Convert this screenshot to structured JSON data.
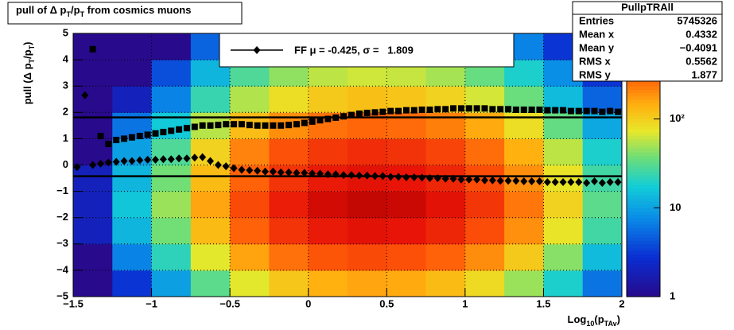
{
  "chart_data": {
    "type": "heatmap",
    "title": [
      {
        "text": "pull of Δ p"
      },
      {
        "text": "T",
        "sub": true
      },
      {
        "text": "/p"
      },
      {
        "text": "T",
        "sub": true
      },
      {
        "text": " from cosmics muons"
      }
    ],
    "ylabel": [
      {
        "text": "pull (Δ p"
      },
      {
        "text": "T",
        "sub": true
      },
      {
        "text": "/p"
      },
      {
        "text": "T",
        "sub": true
      },
      {
        "text": ")"
      }
    ],
    "xlabel": [
      {
        "text": "Log"
      },
      {
        "text": "10",
        "sub": true
      },
      {
        "text": "(p"
      },
      {
        "text": "TAv",
        "sub": true
      },
      {
        "text": ")"
      }
    ],
    "legend": {
      "text": "FF μ = -0.425, σ =   1.809",
      "color": "#000000"
    },
    "stats": {
      "title": "PullpTRAll",
      "rows": [
        [
          "Entries",
          "5745326"
        ],
        [
          "Mean x",
          "0.4332"
        ],
        [
          "Mean y",
          "−0.4091"
        ],
        [
          "RMS x",
          "0.5562"
        ],
        [
          "RMS y",
          "1.877"
        ]
      ]
    },
    "xlim": [
      -1.5,
      2
    ],
    "ylim": [
      -5,
      5
    ],
    "xticks": [
      {
        "value": -1.5,
        "label": "−1.5"
      },
      {
        "value": -1,
        "label": "−1"
      },
      {
        "value": -0.5,
        "label": "−0.5"
      },
      0,
      0.5,
      1,
      1.5,
      2
    ],
    "yticks": [
      {
        "value": -5,
        "label": "−5"
      },
      {
        "value": -4,
        "label": "−4"
      },
      {
        "value": -3,
        "label": "−3"
      },
      {
        "value": -2,
        "label": "−2"
      },
      {
        "value": -1,
        "label": "−1"
      },
      0,
      1,
      2,
      3,
      4,
      5
    ],
    "grid": true,
    "zlim": [
      1,
      920
    ],
    "zlog": true,
    "zticks": [
      1,
      10,
      {
        "value": 100,
        "label": "10²"
      }
    ],
    "heatmap": {
      "xbins": [
        -1.5,
        -1.25,
        -1,
        -0.75,
        -0.5,
        -0.25,
        0,
        0.25,
        0.5,
        0.75,
        1,
        1.25,
        1.5,
        1.75,
        2
      ],
      "ybins": [
        -5,
        -4,
        -3,
        -2,
        -1,
        0,
        1,
        2,
        3,
        4,
        5
      ],
      "z": [
        [
          1,
          3,
          10,
          32,
          72,
          112,
          144,
          160,
          152,
          128,
          88,
          48,
          19,
          6
        ],
        [
          1,
          7,
          22,
          72,
          162,
          252,
          324,
          360,
          342,
          288,
          198,
          108,
          43,
          14
        ],
        [
          2,
          13,
          38,
          128,
          288,
          448,
          576,
          640,
          608,
          512,
          352,
          192,
          77,
          26
        ],
        [
          2,
          16,
          48,
          160,
          360,
          560,
          720,
          800,
          760,
          640,
          440,
          240,
          96,
          32
        ],
        [
          2,
          13,
          38,
          128,
          288,
          448,
          576,
          640,
          608,
          512,
          352,
          192,
          77,
          26
        ],
        [
          1,
          10,
          29,
          96,
          216,
          336,
          432,
          480,
          456,
          384,
          264,
          144,
          58,
          19
        ],
        [
          1,
          6,
          17,
          56,
          126,
          196,
          252,
          280,
          266,
          224,
          154,
          84,
          34,
          11
        ],
        [
          1,
          2,
          7,
          24,
          54,
          84,
          108,
          120,
          114,
          96,
          66,
          36,
          14,
          5
        ],
        [
          1,
          1,
          4,
          13,
          29,
          45,
          58,
          64,
          61,
          51,
          35,
          19,
          8,
          3
        ],
        [
          1,
          1,
          1,
          5,
          11,
          17,
          22,
          24,
          23,
          19,
          13,
          7,
          3,
          1
        ]
      ]
    },
    "x": [
      -1.475,
      -1.425,
      -1.375,
      -1.325,
      -1.275,
      -1.225,
      -1.175,
      -1.125,
      -1.075,
      -1.025,
      -0.975,
      -0.925,
      -0.875,
      -0.825,
      -0.775,
      -0.725,
      -0.675,
      -0.625,
      -0.575,
      -0.525,
      -0.475,
      -0.425,
      -0.375,
      -0.325,
      -0.275,
      -0.225,
      -0.175,
      -0.125,
      -0.075,
      -0.025,
      0.025,
      0.075,
      0.125,
      0.175,
      0.225,
      0.275,
      0.325,
      0.375,
      0.425,
      0.475,
      0.525,
      0.575,
      0.625,
      0.675,
      0.725,
      0.775,
      0.825,
      0.875,
      0.925,
      0.975,
      1.025,
      1.075,
      1.125,
      1.175,
      1.225,
      1.275,
      1.325,
      1.375,
      1.425,
      1.475,
      1.525,
      1.575,
      1.625,
      1.675,
      1.725,
      1.775,
      1.825,
      1.875,
      1.925,
      1.975
    ],
    "series": [
      {
        "marker": "square",
        "color": "#000000",
        "values": [
          null,
          null,
          4.4,
          1.1,
          0.8,
          0.95,
          1.0,
          1.05,
          1.1,
          1.15,
          1.2,
          1.25,
          1.3,
          1.35,
          1.4,
          1.45,
          1.5,
          1.5,
          1.52,
          1.55,
          1.55,
          1.55,
          1.52,
          1.5,
          1.5,
          1.5,
          1.5,
          1.52,
          1.55,
          1.6,
          1.65,
          1.7,
          1.75,
          1.8,
          1.85,
          1.9,
          1.95,
          1.98,
          2.0,
          2.02,
          2.05,
          2.05,
          2.08,
          2.08,
          2.1,
          2.1,
          2.12,
          2.12,
          2.15,
          2.15,
          2.15,
          2.15,
          2.15,
          2.12,
          2.12,
          2.12,
          2.1,
          2.1,
          2.1,
          2.1,
          2.08,
          2.08,
          2.08,
          2.05,
          2.05,
          2.05,
          2.05,
          2.02,
          2.05,
          2.02
        ]
      },
      {
        "marker": "diamond",
        "color": "#000000",
        "values": [
          -0.08,
          2.65,
          0.0,
          0.05,
          0.1,
          0.12,
          0.15,
          0.15,
          0.18,
          0.2,
          0.2,
          0.22,
          0.22,
          0.25,
          0.25,
          0.28,
          0.3,
          0.15,
          0.0,
          -0.05,
          -0.12,
          -0.18,
          -0.2,
          -0.22,
          -0.25,
          -0.25,
          -0.28,
          -0.28,
          -0.3,
          -0.3,
          -0.32,
          -0.33,
          -0.35,
          -0.35,
          -0.38,
          -0.38,
          -0.4,
          -0.4,
          -0.42,
          -0.42,
          -0.45,
          -0.45,
          -0.47,
          -0.47,
          -0.48,
          -0.5,
          -0.5,
          -0.52,
          -0.52,
          -0.55,
          -0.55,
          -0.55,
          -0.58,
          -0.58,
          -0.6,
          -0.6,
          -0.6,
          -0.62,
          -0.62,
          -0.62,
          -0.65,
          -0.65,
          -0.65,
          -0.65,
          -0.65,
          -0.68,
          -0.62,
          -0.68,
          -0.65,
          -0.65
        ]
      }
    ],
    "reference_lines": [
      1.809,
      -0.425
    ]
  }
}
